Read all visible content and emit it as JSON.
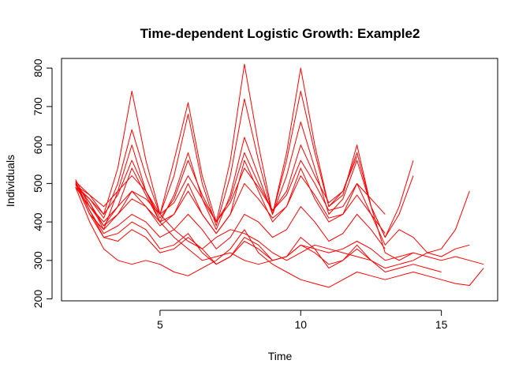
{
  "chart_data": {
    "type": "line",
    "title": "Time-dependent Logistic Growth: Example2",
    "xlabel": "Time",
    "ylabel": "Individuals",
    "xlim": [
      1.5,
      17
    ],
    "ylim": [
      195,
      825
    ],
    "xticks": [
      5,
      10,
      15
    ],
    "yticks": [
      200,
      300,
      400,
      500,
      600,
      700,
      800
    ],
    "line_color": "#ff0000",
    "grid": false,
    "legend": "none",
    "series": [
      {
        "x": [
          2,
          2.5,
          3,
          3.5,
          4,
          4.5,
          5,
          5.5,
          6,
          6.5,
          7,
          7.5,
          8,
          8.5,
          9,
          9.5,
          10,
          10.5,
          11,
          11.5,
          12,
          12.5,
          13,
          13.5,
          14,
          14.5,
          15,
          15.5,
          16,
          16.5
        ],
        "values": [
          500,
          420,
          380,
          420,
          460,
          440,
          400,
          360,
          330,
          300,
          310,
          320,
          300,
          290,
          300,
          310,
          340,
          330,
          320,
          330,
          350,
          330,
          300,
          310,
          320,
          310,
          300,
          310,
          300,
          290
        ]
      },
      {
        "x": [
          2,
          2.5,
          3,
          3.5,
          4,
          4.5,
          5,
          5.5,
          6,
          6.5,
          7,
          7.5,
          8,
          8.5,
          9,
          9.5,
          10,
          10.5,
          11,
          11.5,
          12,
          12.5,
          13,
          13.5,
          14,
          14.5,
          15,
          15.5,
          16,
          16.5
        ],
        "values": [
          490,
          400,
          330,
          300,
          290,
          300,
          290,
          270,
          260,
          280,
          300,
          330,
          380,
          320,
          290,
          270,
          250,
          240,
          230,
          250,
          270,
          260,
          250,
          260,
          270,
          260,
          250,
          240,
          235,
          280
        ]
      },
      {
        "x": [
          2,
          2.5,
          3,
          3.5,
          4,
          4.5,
          5,
          5.5,
          6,
          6.5,
          7,
          7.5,
          8,
          8.5,
          9,
          9.5,
          10,
          10.5,
          11,
          11.5,
          12,
          12.5,
          13,
          13.5,
          14,
          14.5,
          15,
          15.5,
          16
        ],
        "values": [
          510,
          440,
          400,
          440,
          480,
          460,
          420,
          380,
          350,
          330,
          360,
          380,
          370,
          350,
          320,
          300,
          320,
          340,
          330,
          320,
          310,
          300,
          280,
          290,
          300,
          320,
          310,
          330,
          340
        ]
      },
      {
        "x": [
          2,
          2.5,
          3,
          3.5,
          4,
          4.5,
          5,
          5.5,
          6,
          6.5,
          7,
          7.5,
          8,
          8.5,
          9,
          9.5,
          10,
          10.5,
          11,
          11.5,
          12,
          12.5,
          13,
          13.5,
          14,
          14.5,
          15,
          15.5,
          16
        ],
        "values": [
          500,
          450,
          380,
          480,
          600,
          480,
          400,
          420,
          500,
          420,
          370,
          420,
          560,
          480,
          400,
          440,
          540,
          460,
          400,
          420,
          500,
          420,
          340,
          380,
          360,
          320,
          330,
          380,
          480
        ]
      },
      {
        "x": [
          2,
          2.5,
          3,
          3.5,
          4,
          4.5,
          5,
          5.5,
          6,
          6.5,
          7,
          7.5,
          8,
          8.5,
          9,
          9.5,
          10,
          10.5,
          11,
          11.5,
          12,
          12.5,
          13,
          13.5,
          14
        ],
        "values": [
          505,
          470,
          420,
          540,
          740,
          560,
          420,
          560,
          710,
          520,
          400,
          560,
          810,
          600,
          420,
          580,
          800,
          600,
          440,
          480,
          580,
          440,
          320,
          300,
          320
        ]
      },
      {
        "x": [
          2,
          2.5,
          3,
          3.5,
          4,
          4.5,
          5,
          5.5,
          6,
          6.5,
          7,
          7.5,
          8,
          8.5,
          9,
          9.5,
          10,
          10.5,
          11,
          11.5,
          12,
          12.5,
          13,
          13.5,
          14
        ],
        "values": [
          495,
          460,
          410,
          500,
          640,
          520,
          420,
          520,
          680,
          500,
          390,
          520,
          720,
          560,
          420,
          560,
          740,
          580,
          440,
          470,
          600,
          440,
          360,
          440,
          560
        ]
      },
      {
        "x": [
          2,
          2.5,
          3,
          3.5,
          4,
          4.5,
          5,
          5.5,
          6,
          6.5,
          7,
          7.5,
          8,
          8.5,
          9,
          9.5,
          10,
          10.5,
          11,
          11.5,
          12,
          12.5,
          13,
          13.5,
          14
        ],
        "values": [
          490,
          440,
          390,
          440,
          540,
          470,
          400,
          470,
          580,
          460,
          380,
          470,
          620,
          520,
          420,
          520,
          660,
          540,
          420,
          460,
          560,
          440,
          360,
          420,
          520
        ]
      },
      {
        "x": [
          2,
          2.5,
          3,
          3.5,
          4,
          4.5,
          5,
          5.5,
          6,
          6.5,
          7,
          7.5,
          8,
          8.5,
          9,
          9.5,
          10,
          10.5,
          11,
          11.5,
          12,
          12.5,
          13
        ],
        "values": [
          500,
          450,
          390,
          420,
          480,
          440,
          390,
          420,
          480,
          420,
          370,
          420,
          500,
          460,
          410,
          440,
          520,
          470,
          410,
          420,
          470,
          420,
          370
        ]
      },
      {
        "x": [
          2,
          2.5,
          3,
          3.5,
          4,
          4.5,
          5,
          5.5,
          6,
          6.5,
          7,
          7.5,
          8,
          8.5,
          9,
          9.5,
          10,
          10.5,
          11,
          11.5,
          12,
          12.5,
          13
        ],
        "values": [
          505,
          430,
          370,
          390,
          420,
          400,
          360,
          380,
          420,
          380,
          330,
          360,
          420,
          400,
          360,
          380,
          440,
          400,
          350,
          370,
          420,
          380,
          330
        ]
      },
      {
        "x": [
          2,
          2.5,
          3,
          3.5,
          4,
          4.5,
          5,
          5.5,
          6,
          6.5,
          7,
          7.5,
          8,
          8.5,
          9,
          9.5,
          10,
          10.5,
          11,
          11.5,
          12,
          12.5,
          13
        ],
        "values": [
          495,
          470,
          440,
          480,
          520,
          480,
          420,
          450,
          520,
          460,
          400,
          450,
          540,
          490,
          430,
          470,
          560,
          500,
          430,
          440,
          500,
          460,
          420
        ]
      },
      {
        "x": [
          2,
          2.5,
          3,
          3.5,
          4,
          4.5,
          5,
          5.5,
          6,
          6.5,
          7,
          7.5,
          8,
          8.5,
          9,
          9.5,
          10,
          10.5,
          11,
          11.5,
          12,
          12.5
        ],
        "values": [
          500,
          430,
          360,
          350,
          380,
          360,
          320,
          330,
          360,
          330,
          290,
          310,
          360,
          340,
          300,
          310,
          360,
          330,
          280,
          300,
          340,
          300
        ]
      },
      {
        "x": [
          2,
          2.5,
          3,
          3.5,
          4,
          4.5,
          5,
          5.5,
          6,
          6.5,
          7,
          7.5,
          8,
          8.5,
          9,
          9.5,
          10,
          10.5,
          11,
          11.5,
          12,
          12.5,
          13,
          13.5,
          14,
          14.5,
          15
        ],
        "values": [
          500,
          420,
          360,
          370,
          400,
          380,
          330,
          340,
          370,
          320,
          290,
          310,
          350,
          330,
          300,
          310,
          340,
          320,
          290,
          300,
          330,
          300,
          270,
          280,
          290,
          280,
          270
        ]
      },
      {
        "x": [
          2,
          2.5,
          3,
          3.5,
          4,
          4.5,
          5,
          5.5,
          6,
          6.5,
          7,
          7.5,
          8,
          8.5,
          9,
          9.5,
          10,
          10.5,
          11,
          11.5,
          12
        ],
        "values": [
          490,
          460,
          420,
          470,
          560,
          480,
          410,
          460,
          560,
          470,
          400,
          460,
          580,
          500,
          430,
          480,
          600,
          520,
          450,
          480,
          570
        ]
      }
    ]
  }
}
